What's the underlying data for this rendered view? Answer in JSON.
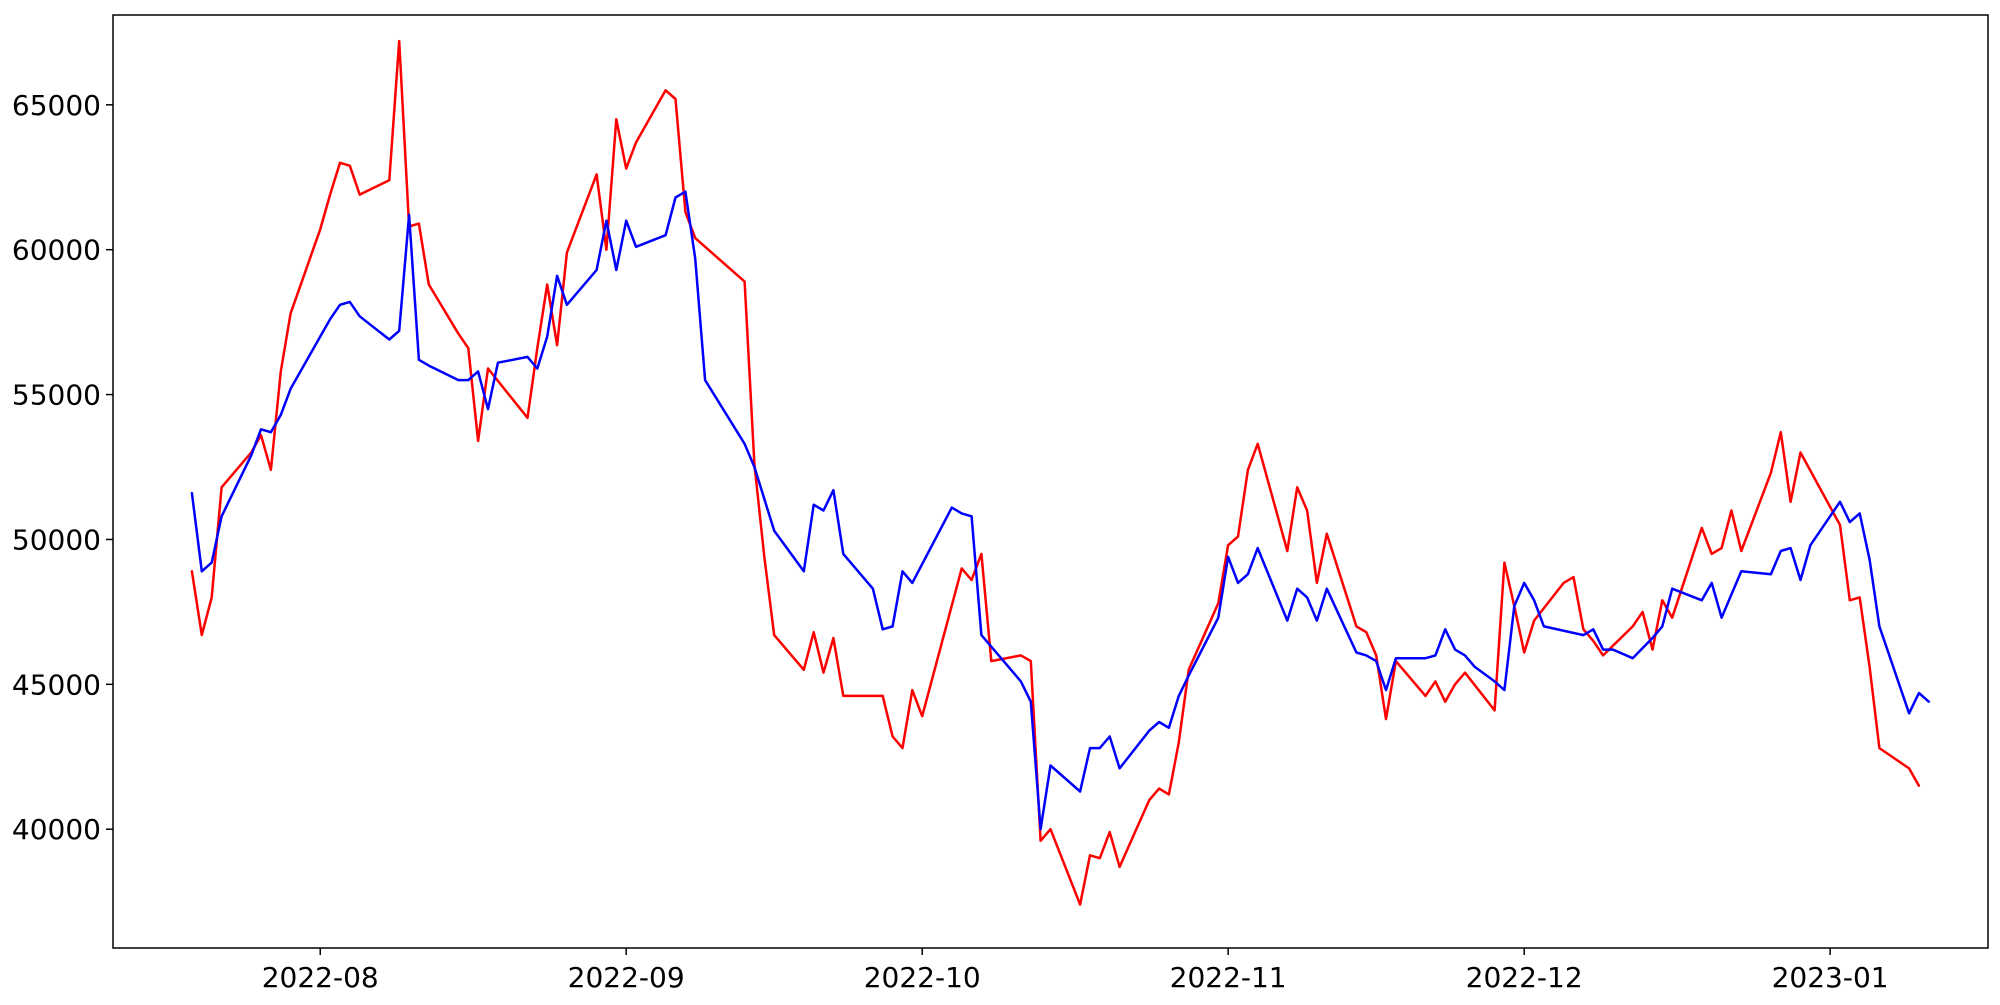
{
  "chart_data": {
    "type": "line",
    "title": "",
    "xlabel": "",
    "ylabel": "",
    "grid": false,
    "legend": "none",
    "xlim": [
      "2022-07-11",
      "2023-01-17"
    ],
    "ylim": [
      35900,
      68100
    ],
    "x_ticks": [
      {
        "date": "2022-08-01",
        "label": "2022-08"
      },
      {
        "date": "2022-09-01",
        "label": "2022-09"
      },
      {
        "date": "2022-10-01",
        "label": "2022-10"
      },
      {
        "date": "2022-11-01",
        "label": "2022-11"
      },
      {
        "date": "2022-12-01",
        "label": "2022-12"
      },
      {
        "date": "2023-01-01",
        "label": "2023-01"
      }
    ],
    "y_ticks": [
      {
        "value": 40000,
        "label": "40000"
      },
      {
        "value": 45000,
        "label": "45000"
      },
      {
        "value": 50000,
        "label": "50000"
      },
      {
        "value": 55000,
        "label": "55000"
      },
      {
        "value": 60000,
        "label": "60000"
      },
      {
        "value": 65000,
        "label": "65000"
      }
    ],
    "series": [
      {
        "color": "#ff0000",
        "points": [
          [
            "2022-07-19",
            48900
          ],
          [
            "2022-07-20",
            46700
          ],
          [
            "2022-07-21",
            48000
          ],
          [
            "2022-07-22",
            51800
          ],
          [
            "2022-07-25",
            53000
          ],
          [
            "2022-07-26",
            53600
          ],
          [
            "2022-07-27",
            52400
          ],
          [
            "2022-07-28",
            55800
          ],
          [
            "2022-07-29",
            57800
          ],
          [
            "2022-08-01",
            60700
          ],
          [
            "2022-08-02",
            61900
          ],
          [
            "2022-08-03",
            63000
          ],
          [
            "2022-08-04",
            62900
          ],
          [
            "2022-08-05",
            61900
          ],
          [
            "2022-08-08",
            62400
          ],
          [
            "2022-08-09",
            67200
          ],
          [
            "2022-08-10",
            60800
          ],
          [
            "2022-08-11",
            60900
          ],
          [
            "2022-08-12",
            58800
          ],
          [
            "2022-08-15",
            57100
          ],
          [
            "2022-08-16",
            56600
          ],
          [
            "2022-08-17",
            53400
          ],
          [
            "2022-08-18",
            55900
          ],
          [
            "2022-08-22",
            54200
          ],
          [
            "2022-08-23",
            56600
          ],
          [
            "2022-08-24",
            58800
          ],
          [
            "2022-08-25",
            56700
          ],
          [
            "2022-08-26",
            59900
          ],
          [
            "2022-08-29",
            62600
          ],
          [
            "2022-08-30",
            60000
          ],
          [
            "2022-08-31",
            64500
          ],
          [
            "2022-09-01",
            62800
          ],
          [
            "2022-09-02",
            63700
          ],
          [
            "2022-09-05",
            65500
          ],
          [
            "2022-09-06",
            65200
          ],
          [
            "2022-09-07",
            61300
          ],
          [
            "2022-09-08",
            60400
          ],
          [
            "2022-09-13",
            58900
          ],
          [
            "2022-09-14",
            52600
          ],
          [
            "2022-09-15",
            49400
          ],
          [
            "2022-09-16",
            46700
          ],
          [
            "2022-09-19",
            45500
          ],
          [
            "2022-09-20",
            46800
          ],
          [
            "2022-09-21",
            45400
          ],
          [
            "2022-09-22",
            46600
          ],
          [
            "2022-09-23",
            44600
          ],
          [
            "2022-09-26",
            44600
          ],
          [
            "2022-09-27",
            44600
          ],
          [
            "2022-09-28",
            43200
          ],
          [
            "2022-09-29",
            42800
          ],
          [
            "2022-09-30",
            44800
          ],
          [
            "2022-10-01",
            43900
          ],
          [
            "2022-10-05",
            49000
          ],
          [
            "2022-10-06",
            48600
          ],
          [
            "2022-10-07",
            49500
          ],
          [
            "2022-10-08",
            45800
          ],
          [
            "2022-10-11",
            46000
          ],
          [
            "2022-10-12",
            45800
          ],
          [
            "2022-10-13",
            39600
          ],
          [
            "2022-10-14",
            40000
          ],
          [
            "2022-10-17",
            37400
          ],
          [
            "2022-10-18",
            39100
          ],
          [
            "2022-10-19",
            39000
          ],
          [
            "2022-10-20",
            39900
          ],
          [
            "2022-10-21",
            38700
          ],
          [
            "2022-10-24",
            41000
          ],
          [
            "2022-10-25",
            41400
          ],
          [
            "2022-10-26",
            41200
          ],
          [
            "2022-10-27",
            43000
          ],
          [
            "2022-10-28",
            45500
          ],
          [
            "2022-10-31",
            47800
          ],
          [
            "2022-11-01",
            49800
          ],
          [
            "2022-11-02",
            50100
          ],
          [
            "2022-11-03",
            52400
          ],
          [
            "2022-11-04",
            53300
          ],
          [
            "2022-11-07",
            49600
          ],
          [
            "2022-11-08",
            51800
          ],
          [
            "2022-11-09",
            51000
          ],
          [
            "2022-11-10",
            48500
          ],
          [
            "2022-11-11",
            50200
          ],
          [
            "2022-11-14",
            47000
          ],
          [
            "2022-11-15",
            46800
          ],
          [
            "2022-11-16",
            46000
          ],
          [
            "2022-11-17",
            43800
          ],
          [
            "2022-11-18",
            45800
          ],
          [
            "2022-11-21",
            44600
          ],
          [
            "2022-11-22",
            45100
          ],
          [
            "2022-11-23",
            44400
          ],
          [
            "2022-11-24",
            45000
          ],
          [
            "2022-11-25",
            45400
          ],
          [
            "2022-11-28",
            44100
          ],
          [
            "2022-11-29",
            49200
          ],
          [
            "2022-11-30",
            47700
          ],
          [
            "2022-12-01",
            46100
          ],
          [
            "2022-12-02",
            47200
          ],
          [
            "2022-12-05",
            48500
          ],
          [
            "2022-12-06",
            48700
          ],
          [
            "2022-12-07",
            46900
          ],
          [
            "2022-12-08",
            46500
          ],
          [
            "2022-12-09",
            46000
          ],
          [
            "2022-12-12",
            47000
          ],
          [
            "2022-12-13",
            47500
          ],
          [
            "2022-12-14",
            46200
          ],
          [
            "2022-12-15",
            47900
          ],
          [
            "2022-12-16",
            47300
          ],
          [
            "2022-12-19",
            50400
          ],
          [
            "2022-12-20",
            49500
          ],
          [
            "2022-12-21",
            49700
          ],
          [
            "2022-12-22",
            51000
          ],
          [
            "2022-12-23",
            49600
          ],
          [
            "2022-12-26",
            52300
          ],
          [
            "2022-12-27",
            53700
          ],
          [
            "2022-12-28",
            51300
          ],
          [
            "2022-12-29",
            53000
          ],
          [
            "2023-01-02",
            50500
          ],
          [
            "2023-01-03",
            47900
          ],
          [
            "2023-01-04",
            48000
          ],
          [
            "2023-01-05",
            45600
          ],
          [
            "2023-01-06",
            42800
          ],
          [
            "2023-01-09",
            42100
          ],
          [
            "2023-01-10",
            41500
          ]
        ]
      },
      {
        "color": "#0000ff",
        "points": [
          [
            "2022-07-19",
            51600
          ],
          [
            "2022-07-20",
            48900
          ],
          [
            "2022-07-21",
            49200
          ],
          [
            "2022-07-22",
            50800
          ],
          [
            "2022-07-25",
            52900
          ],
          [
            "2022-07-26",
            53800
          ],
          [
            "2022-07-27",
            53700
          ],
          [
            "2022-07-28",
            54300
          ],
          [
            "2022-07-29",
            55200
          ],
          [
            "2022-08-01",
            57000
          ],
          [
            "2022-08-02",
            57600
          ],
          [
            "2022-08-03",
            58100
          ],
          [
            "2022-08-04",
            58200
          ],
          [
            "2022-08-05",
            57700
          ],
          [
            "2022-08-08",
            56900
          ],
          [
            "2022-08-09",
            57200
          ],
          [
            "2022-08-10",
            61200
          ],
          [
            "2022-08-11",
            56200
          ],
          [
            "2022-08-12",
            56000
          ],
          [
            "2022-08-15",
            55500
          ],
          [
            "2022-08-16",
            55500
          ],
          [
            "2022-08-17",
            55800
          ],
          [
            "2022-08-18",
            54500
          ],
          [
            "2022-08-19",
            56100
          ],
          [
            "2022-08-22",
            56300
          ],
          [
            "2022-08-23",
            55900
          ],
          [
            "2022-08-24",
            57000
          ],
          [
            "2022-08-25",
            59100
          ],
          [
            "2022-08-26",
            58100
          ],
          [
            "2022-08-29",
            59300
          ],
          [
            "2022-08-30",
            61000
          ],
          [
            "2022-08-31",
            59300
          ],
          [
            "2022-09-01",
            61000
          ],
          [
            "2022-09-02",
            60100
          ],
          [
            "2022-09-05",
            60500
          ],
          [
            "2022-09-06",
            61800
          ],
          [
            "2022-09-07",
            62000
          ],
          [
            "2022-09-08",
            59700
          ],
          [
            "2022-09-09",
            55500
          ],
          [
            "2022-09-13",
            53300
          ],
          [
            "2022-09-14",
            52500
          ],
          [
            "2022-09-15",
            51400
          ],
          [
            "2022-09-16",
            50300
          ],
          [
            "2022-09-19",
            48900
          ],
          [
            "2022-09-20",
            51200
          ],
          [
            "2022-09-21",
            51000
          ],
          [
            "2022-09-22",
            51700
          ],
          [
            "2022-09-23",
            49500
          ],
          [
            "2022-09-26",
            48300
          ],
          [
            "2022-09-27",
            46900
          ],
          [
            "2022-09-28",
            47000
          ],
          [
            "2022-09-29",
            48900
          ],
          [
            "2022-09-30",
            48500
          ],
          [
            "2022-10-04",
            51100
          ],
          [
            "2022-10-05",
            50900
          ],
          [
            "2022-10-06",
            50800
          ],
          [
            "2022-10-07",
            46700
          ],
          [
            "2022-10-11",
            45100
          ],
          [
            "2022-10-12",
            44400
          ],
          [
            "2022-10-13",
            40000
          ],
          [
            "2022-10-14",
            42200
          ],
          [
            "2022-10-17",
            41300
          ],
          [
            "2022-10-18",
            42800
          ],
          [
            "2022-10-19",
            42800
          ],
          [
            "2022-10-20",
            43200
          ],
          [
            "2022-10-21",
            42100
          ],
          [
            "2022-10-24",
            43400
          ],
          [
            "2022-10-25",
            43700
          ],
          [
            "2022-10-26",
            43500
          ],
          [
            "2022-10-27",
            44600
          ],
          [
            "2022-10-28",
            45300
          ],
          [
            "2022-10-31",
            47300
          ],
          [
            "2022-11-01",
            49400
          ],
          [
            "2022-11-02",
            48500
          ],
          [
            "2022-11-03",
            48800
          ],
          [
            "2022-11-04",
            49700
          ],
          [
            "2022-11-07",
            47200
          ],
          [
            "2022-11-08",
            48300
          ],
          [
            "2022-11-09",
            48000
          ],
          [
            "2022-11-10",
            47200
          ],
          [
            "2022-11-11",
            48300
          ],
          [
            "2022-11-14",
            46100
          ],
          [
            "2022-11-15",
            46000
          ],
          [
            "2022-11-16",
            45800
          ],
          [
            "2022-11-17",
            44800
          ],
          [
            "2022-11-18",
            45900
          ],
          [
            "2022-11-21",
            45900
          ],
          [
            "2022-11-22",
            46000
          ],
          [
            "2022-11-23",
            46900
          ],
          [
            "2022-11-24",
            46200
          ],
          [
            "2022-11-25",
            46000
          ],
          [
            "2022-11-26",
            45600
          ],
          [
            "2022-11-28",
            45100
          ],
          [
            "2022-11-29",
            44800
          ],
          [
            "2022-11-30",
            47700
          ],
          [
            "2022-12-01",
            48500
          ],
          [
            "2022-12-02",
            47900
          ],
          [
            "2022-12-03",
            47000
          ],
          [
            "2022-12-07",
            46700
          ],
          [
            "2022-12-08",
            46900
          ],
          [
            "2022-12-09",
            46200
          ],
          [
            "2022-12-10",
            46200
          ],
          [
            "2022-12-12",
            45900
          ],
          [
            "2022-12-14",
            46600
          ],
          [
            "2022-12-15",
            47000
          ],
          [
            "2022-12-16",
            48300
          ],
          [
            "2022-12-19",
            47900
          ],
          [
            "2022-12-20",
            48500
          ],
          [
            "2022-12-21",
            47300
          ],
          [
            "2022-12-22",
            48100
          ],
          [
            "2022-12-23",
            48900
          ],
          [
            "2022-12-26",
            48800
          ],
          [
            "2022-12-27",
            49600
          ],
          [
            "2022-12-28",
            49700
          ],
          [
            "2022-12-29",
            48600
          ],
          [
            "2022-12-30",
            49800
          ],
          [
            "2023-01-02",
            51300
          ],
          [
            "2023-01-03",
            50600
          ],
          [
            "2023-01-04",
            50900
          ],
          [
            "2023-01-05",
            49300
          ],
          [
            "2023-01-06",
            47000
          ],
          [
            "2023-01-09",
            44000
          ],
          [
            "2023-01-10",
            44700
          ],
          [
            "2023-01-11",
            44400
          ]
        ]
      }
    ]
  }
}
